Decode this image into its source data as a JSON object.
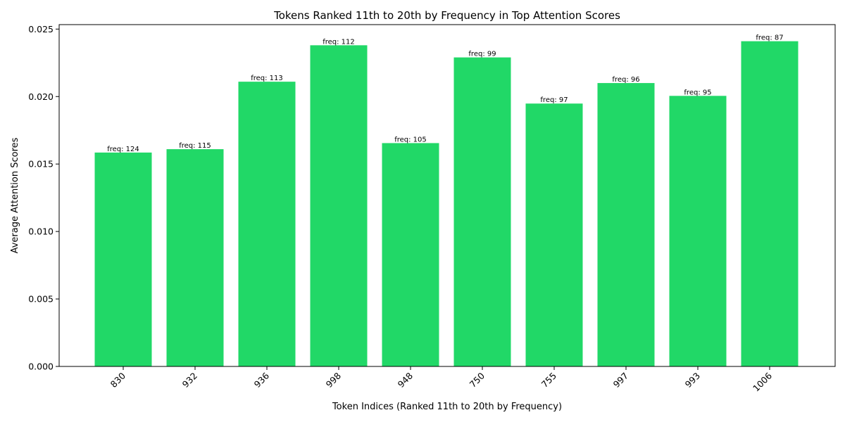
{
  "chart_data": {
    "type": "bar",
    "title": "Tokens Ranked 11th to 20th by Frequency in Top Attention Scores",
    "xlabel": "Token Indices (Ranked 11th to 20th by Frequency)",
    "ylabel": "Average Attention Scores",
    "categories": [
      "830",
      "932",
      "936",
      "998",
      "948",
      "750",
      "755",
      "997",
      "993",
      "1006"
    ],
    "values": [
      0.01585,
      0.0161,
      0.0211,
      0.0238,
      0.01655,
      0.0229,
      0.01948,
      0.021,
      0.02005,
      0.0241
    ],
    "bar_labels": [
      "freq: 124",
      "freq: 115",
      "freq: 113",
      "freq: 112",
      "freq: 105",
      "freq: 99",
      "freq: 97",
      "freq: 96",
      "freq: 95",
      "freq: 87"
    ],
    "ylim": [
      0,
      0.02533
    ],
    "yticks": [
      0.0,
      0.005,
      0.01,
      0.015,
      0.02,
      0.025
    ],
    "ytick_labels": [
      "0.000",
      "0.005",
      "0.010",
      "0.015",
      "0.020",
      "0.025"
    ],
    "bar_color": "#21d867",
    "grid": false,
    "xtick_rotation": 45
  }
}
